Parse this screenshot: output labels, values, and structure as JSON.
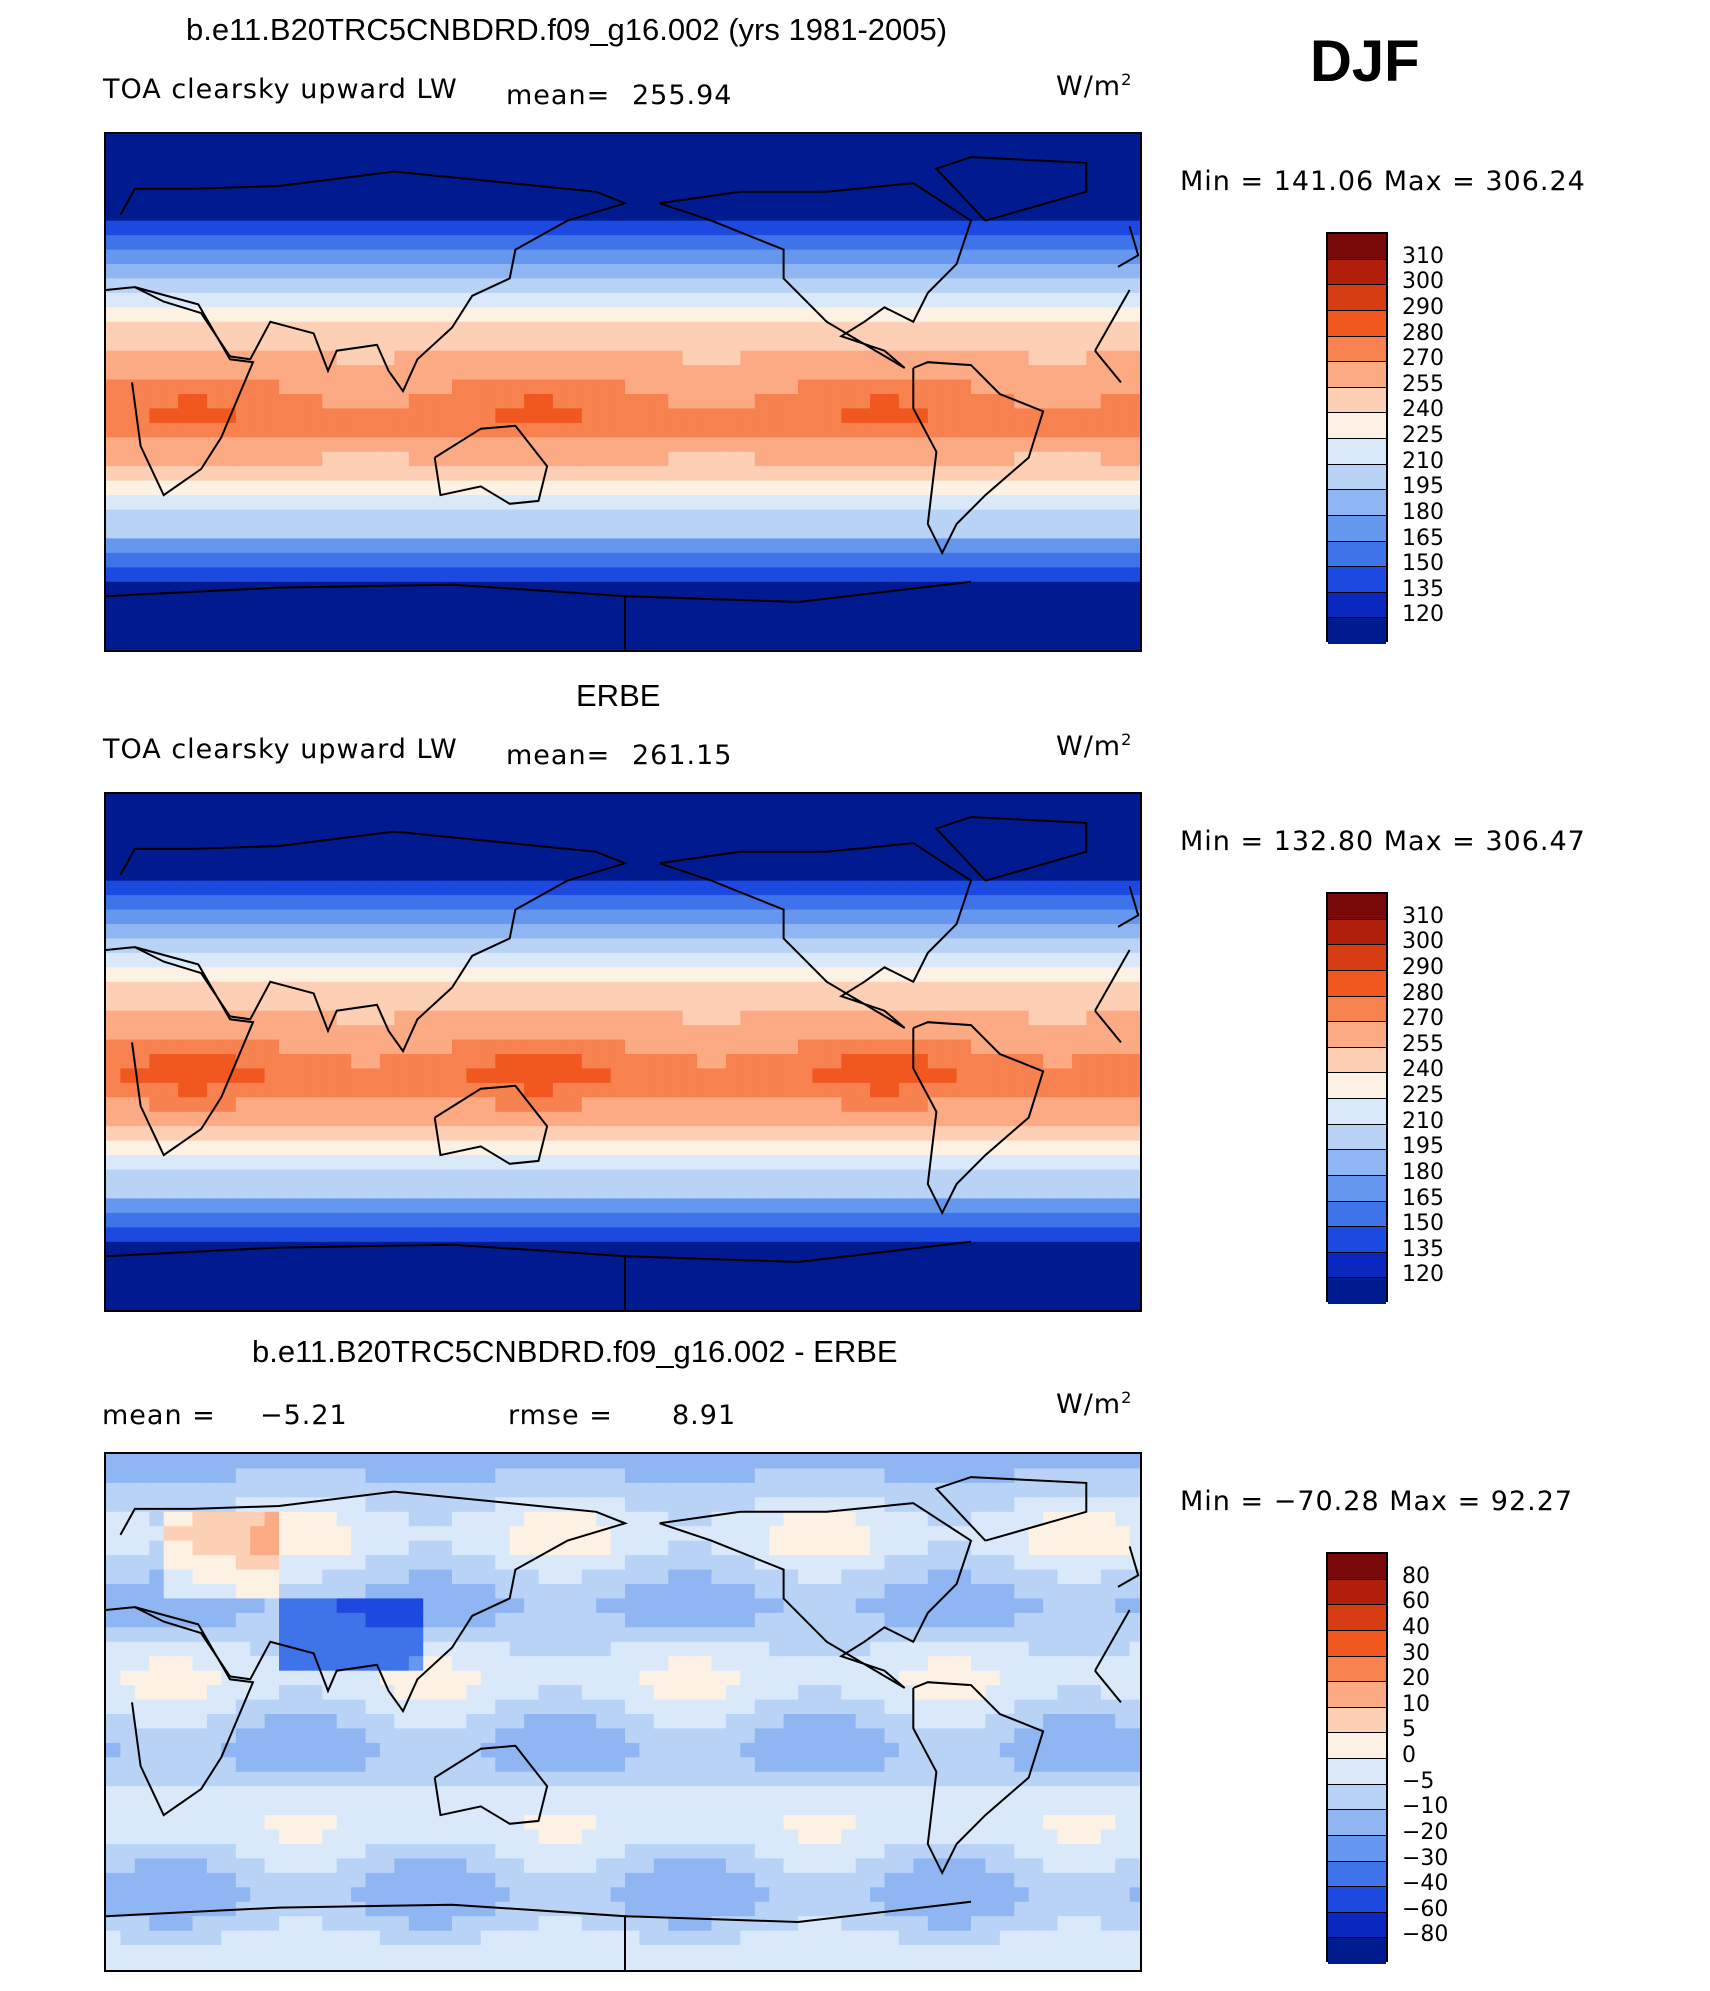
{
  "season": "DJF",
  "units_base": "W/m",
  "units_exp": "2",
  "panels": [
    {
      "title": "b.e11.B20TRC5CNBDRD.f09_g16.002 (yrs 1981-2005)",
      "variable": "TOA clearsky upward LW",
      "mean_label": "mean=",
      "mean_value": "255.94",
      "minmax": "Min  =  141.06  Max  =  306.24",
      "cbar_labels": [
        "310",
        "300",
        "290",
        "280",
        "270",
        "255",
        "240",
        "225",
        "210",
        "195",
        "180",
        "165",
        "150",
        "135",
        "120"
      ]
    },
    {
      "title": "ERBE",
      "variable": "TOA clearsky upward LW",
      "mean_label": "mean=",
      "mean_value": "261.15",
      "minmax": "Min  =  132.80  Max  =  306.47",
      "cbar_labels": [
        "310",
        "300",
        "290",
        "280",
        "270",
        "255",
        "240",
        "225",
        "210",
        "195",
        "180",
        "165",
        "150",
        "135",
        "120"
      ]
    },
    {
      "title": "b.e11.B20TRC5CNBDRD.f09_g16.002 - ERBE",
      "mean_label": "mean  =",
      "mean_value": "−5.21",
      "rmse_label": "rmse  =",
      "rmse_value": "8.91",
      "minmax": "Min  =  −70.28  Max  =    92.27",
      "cbar_labels": [
        "80",
        "60",
        "40",
        "30",
        "20",
        "10",
        "5",
        "0",
        "−5",
        "−10",
        "−20",
        "−30",
        "−40",
        "−60",
        "−80"
      ]
    }
  ],
  "colors": {
    "palette": [
      "#7a0a0a",
      "#b11f0c",
      "#d63d12",
      "#f0581f",
      "#f7814f",
      "#fbaa83",
      "#fdd0b6",
      "#fdf1e4",
      "#d9e9fa",
      "#b8d3f6",
      "#8fb6f2",
      "#6597ef",
      "#3f73ea",
      "#1c4ae0",
      "#0a27c0",
      "#001a90"
    ]
  },
  "chart_data": [
    {
      "type": "heatmap",
      "title": "b.e11.B20TRC5CNBDRD.f09_g16.002 (yrs 1981-2005)",
      "subtitle": "TOA clearsky upward LW",
      "units": "W/m2",
      "mean": 255.94,
      "min": 141.06,
      "max": 306.24,
      "levels": [
        120,
        135,
        150,
        165,
        180,
        195,
        210,
        225,
        240,
        255,
        270,
        280,
        290,
        300,
        310
      ],
      "xlabel": "",
      "ylabel": ""
    },
    {
      "type": "heatmap",
      "title": "ERBE",
      "subtitle": "TOA clearsky upward LW",
      "units": "W/m2",
      "mean": 261.15,
      "min": 132.8,
      "max": 306.47,
      "levels": [
        120,
        135,
        150,
        165,
        180,
        195,
        210,
        225,
        240,
        255,
        270,
        280,
        290,
        300,
        310
      ],
      "xlabel": "",
      "ylabel": ""
    },
    {
      "type": "heatmap",
      "title": "b.e11.B20TRC5CNBDRD.f09_g16.002 - ERBE",
      "units": "W/m2",
      "mean": -5.21,
      "rmse": 8.91,
      "min": -70.28,
      "max": 92.27,
      "levels": [
        -80,
        -60,
        -40,
        -30,
        -20,
        -10,
        -5,
        0,
        5,
        10,
        20,
        30,
        40,
        60,
        80
      ],
      "xlabel": "",
      "ylabel": ""
    }
  ]
}
